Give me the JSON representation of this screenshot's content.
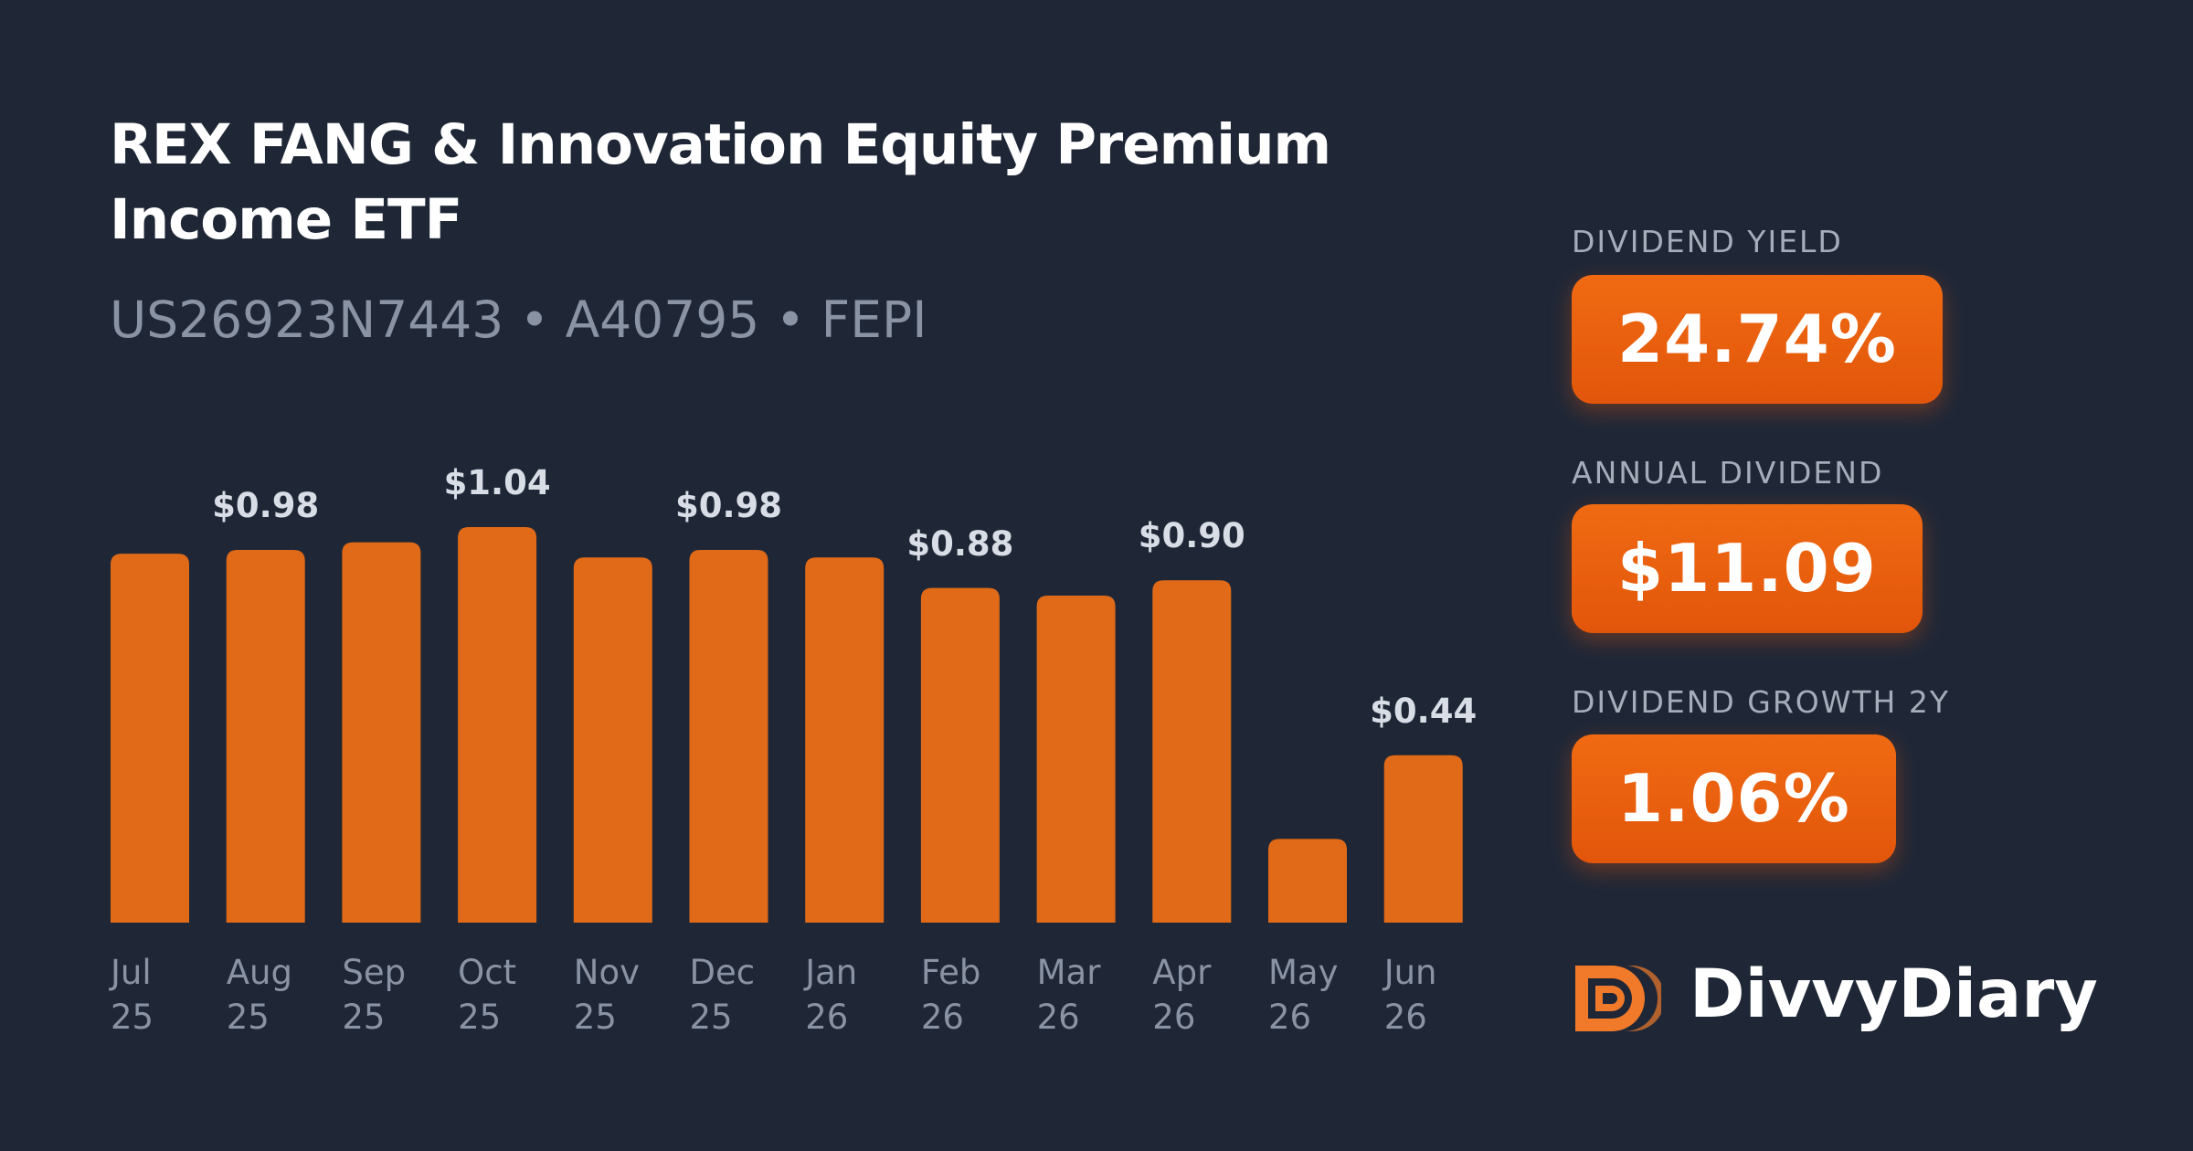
{
  "header": {
    "title": "REX FANG & Innovation Equity Premium Income ETF",
    "subtitle": "US26923N7443 • A40795 • FEPI"
  },
  "chart_data": {
    "type": "bar",
    "color": "#e06a17",
    "categories": [
      "Jul 25",
      "Aug 25",
      "Sep 25",
      "Oct 25",
      "Nov 25",
      "Dec 25",
      "Jan 26",
      "Feb 26",
      "Mar 26",
      "Apr 26",
      "May 26",
      "Jun 26"
    ],
    "values": [
      0.97,
      0.98,
      1.0,
      1.04,
      0.96,
      0.98,
      0.96,
      0.88,
      0.86,
      0.9,
      0.22,
      0.44
    ],
    "value_labels": [
      null,
      "$0.98",
      null,
      "$1.04",
      null,
      "$0.98",
      null,
      "$0.88",
      null,
      "$0.90",
      null,
      "$0.44"
    ]
  },
  "stats": [
    {
      "label": "DIVIDEND YIELD",
      "value": "24.74%"
    },
    {
      "label": "ANNUAL DIVIDEND",
      "value": "$11.09"
    },
    {
      "label": "DIVIDEND GROWTH 2Y",
      "value": "1.06%"
    }
  ],
  "brand": "DivvyDiary"
}
